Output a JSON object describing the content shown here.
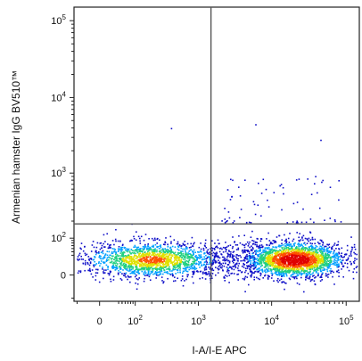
{
  "chart_data": {
    "type": "scatter",
    "subtype": "flow-cytometry-density-dot-plot",
    "xlabel": "I-A/I-E APC",
    "ylabel": "Armenian hamster IgG BV510™",
    "x_scale": "biexponential",
    "y_scale": "biexponential",
    "x_ticks": [
      {
        "value": 0,
        "label": "0",
        "power": ""
      },
      {
        "value": 100,
        "label": "10",
        "power": "2"
      },
      {
        "value": 1000,
        "label": "10",
        "power": "3"
      },
      {
        "value": 10000,
        "label": "10",
        "power": "4"
      },
      {
        "value": 100000,
        "label": "10",
        "power": "5"
      }
    ],
    "y_ticks": [
      {
        "value": 0,
        "label": "0",
        "power": ""
      },
      {
        "value": 100,
        "label": "10",
        "power": "2"
      },
      {
        "value": 1000,
        "label": "10",
        "power": "3"
      },
      {
        "value": 10000,
        "label": "10",
        "power": "4"
      },
      {
        "value": 100000,
        "label": "10",
        "power": "5"
      }
    ],
    "quadrant_gates": {
      "x": 1500,
      "y": 180
    },
    "populations": [
      {
        "name": "I-A/I-E negative",
        "x_center": 200,
        "y_center": 30,
        "density": "medium"
      },
      {
        "name": "I-A/I-E positive",
        "x_center": 20000,
        "y_center": 30,
        "density": "high"
      }
    ],
    "outliers": [
      {
        "x": 400,
        "y": 4000
      },
      {
        "x": 6000,
        "y": 4500
      },
      {
        "x": 45000,
        "y": 2800
      },
      {
        "x": 2500,
        "y": 600
      },
      {
        "x": 60000,
        "y": 650
      }
    ],
    "grid": false,
    "legend": "none",
    "colormap": [
      "#1010c8",
      "#00a0ff",
      "#20d080",
      "#e0e000",
      "#ff5000",
      "#e00000"
    ]
  }
}
